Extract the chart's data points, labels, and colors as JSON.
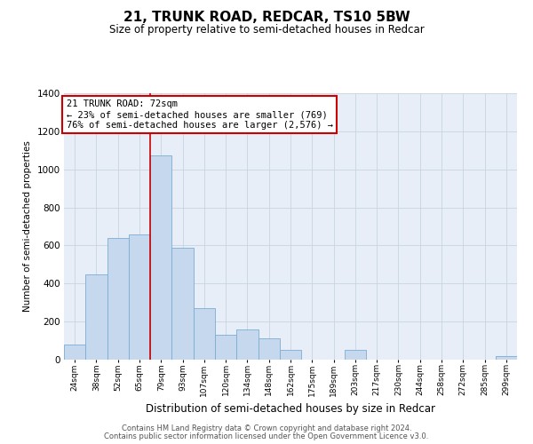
{
  "title": "21, TRUNK ROAD, REDCAR, TS10 5BW",
  "subtitle": "Size of property relative to semi-detached houses in Redcar",
  "xlabel": "Distribution of semi-detached houses by size in Redcar",
  "ylabel": "Number of semi-detached properties",
  "annotation_title": "21 TRUNK ROAD: 72sqm",
  "annotation_line1": "← 23% of semi-detached houses are smaller (769)",
  "annotation_line2": "76% of semi-detached houses are larger (2,576) →",
  "footer1": "Contains HM Land Registry data © Crown copyright and database right 2024.",
  "footer2": "Contains public sector information licensed under the Open Government Licence v3.0.",
  "categories": [
    "24sqm",
    "38sqm",
    "52sqm",
    "65sqm",
    "79sqm",
    "93sqm",
    "107sqm",
    "120sqm",
    "134sqm",
    "148sqm",
    "162sqm",
    "175sqm",
    "189sqm",
    "203sqm",
    "217sqm",
    "230sqm",
    "244sqm",
    "258sqm",
    "272sqm",
    "285sqm",
    "299sqm"
  ],
  "values": [
    80,
    450,
    640,
    660,
    1075,
    590,
    270,
    130,
    160,
    110,
    50,
    0,
    0,
    50,
    0,
    0,
    0,
    0,
    0,
    0,
    20
  ],
  "bar_color": "#c5d8ee",
  "bar_edge_color": "#7aaed4",
  "vline_x_index": 3.5,
  "vline_color": "#cc0000",
  "grid_color": "#c8d4e2",
  "bg_color": "#e8eef8",
  "ylim_max": 1400,
  "yticks": [
    0,
    200,
    400,
    600,
    800,
    1000,
    1200,
    1400
  ],
  "fig_width": 6.0,
  "fig_height": 5.0,
  "title_fontsize": 11,
  "subtitle_fontsize": 8.5,
  "ylabel_fontsize": 7.5,
  "xlabel_fontsize": 8.5,
  "ytick_fontsize": 7.5,
  "xtick_fontsize": 6.5,
  "annot_fontsize": 7.5,
  "footer_fontsize": 6.0
}
